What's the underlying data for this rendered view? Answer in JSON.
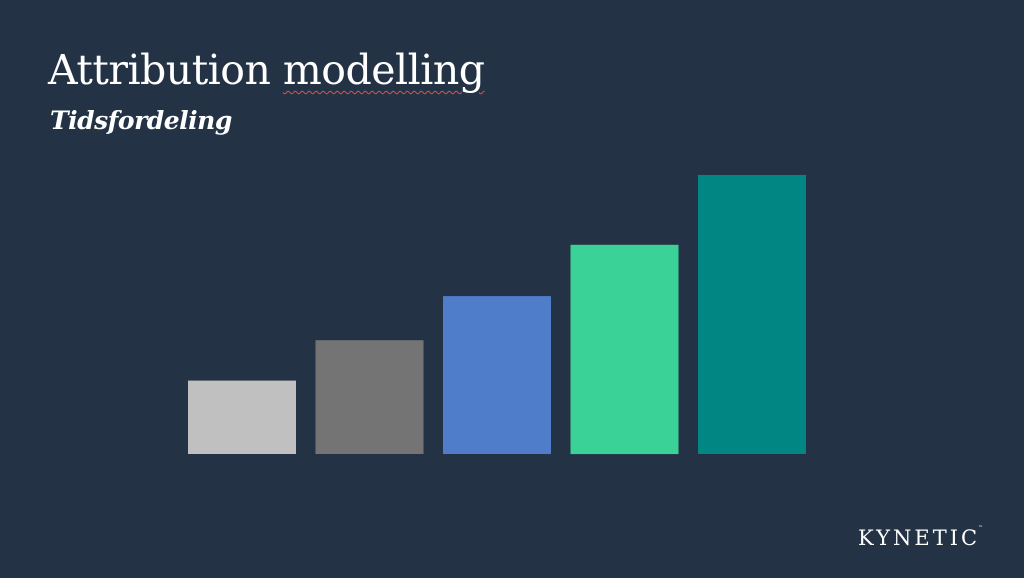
{
  "slide": {
    "title_part1": "Attribution ",
    "title_part2": "modelling",
    "subtitle": "Tidsfordeling",
    "logo": "KYNETIC",
    "logo_mark": "™"
  },
  "chart_data": {
    "type": "bar",
    "categories": [
      "",
      "",
      "",
      "",
      ""
    ],
    "values": [
      20,
      31,
      43,
      57,
      76
    ],
    "colors": [
      "#c0c0c0",
      "#747474",
      "#507dc9",
      "#3ad297",
      "#018684"
    ],
    "ylim": [
      0,
      76
    ],
    "title": "",
    "xlabel": "",
    "ylabel": "",
    "grid": false,
    "axes_visible": false
  },
  "colors": {
    "background": "#233345",
    "text": "#ffffff",
    "spellcheck_underline": "#d9534f"
  }
}
